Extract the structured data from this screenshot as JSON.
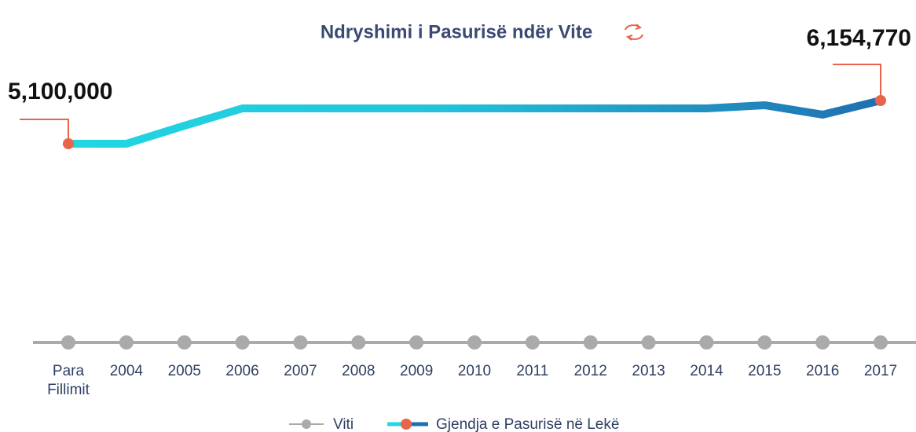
{
  "chart_data": {
    "type": "line",
    "title": "Ndryshimi i Pasurisë ndër Vite",
    "x_legend": "Viti",
    "categories": [
      "Para Fillimit",
      "2004",
      "2005",
      "2006",
      "2007",
      "2008",
      "2009",
      "2010",
      "2011",
      "2012",
      "2013",
      "2014",
      "2015",
      "2016",
      "2017"
    ],
    "series": [
      {
        "name": "Gjendja e Pasurisë në Lekë",
        "color": "#1f6fb0",
        "color_start": "#22d6e2",
        "values": [
          5100000,
          5100000,
          5540000,
          5963000,
          5963000,
          5963000,
          5963000,
          5963000,
          5963000,
          5963000,
          5963000,
          5963000,
          6040000,
          5810000,
          6154770
        ],
        "value_labels": [
          "5,100,000",
          null,
          null,
          null,
          null,
          null,
          null,
          null,
          null,
          null,
          null,
          null,
          null,
          null,
          "6,154,770"
        ]
      }
    ]
  }
}
